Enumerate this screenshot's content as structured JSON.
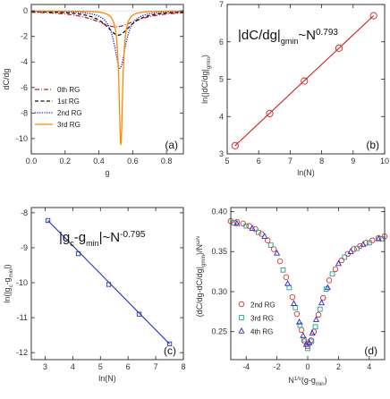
{
  "chart_data": [
    {
      "panel": "a",
      "type": "line",
      "xlabel": "g",
      "ylabel": "dC/dg",
      "xlim": [
        0.0,
        0.9
      ],
      "ylim": [
        -11.2,
        0.5
      ],
      "xticks": [
        "0.0",
        "0.2",
        "0.4",
        "0.6",
        "0.8"
      ],
      "yticks": [
        "0",
        "-2",
        "-4",
        "-6",
        "-8",
        "-10"
      ],
      "panel_label": "(a)",
      "legend_position": "lower-left",
      "series": [
        {
          "name": "0th RG",
          "color": "#cc2222",
          "style": "dashdot",
          "center": 0.5,
          "min": -1.25,
          "width": 0.15
        },
        {
          "name": "1st RG",
          "color": "#111111",
          "style": "dashed",
          "center": 0.515,
          "min": -1.9,
          "width": 0.09
        },
        {
          "name": "2nd RG",
          "color": "#1a1acc",
          "style": "dotted",
          "center": 0.525,
          "min": -4.5,
          "width": 0.04
        },
        {
          "name": "3rd RG",
          "color": "#ff8800",
          "style": "solid",
          "center": 0.53,
          "min": -10.5,
          "width": 0.013
        }
      ]
    },
    {
      "panel": "b",
      "type": "scatter",
      "xlabel": "ln(N)",
      "ylabel": "ln(|dC/dg|",
      "ylabel_sub": "gmin",
      "ylabel_end": ")",
      "xlim": [
        5,
        10
      ],
      "ylim": [
        3,
        7
      ],
      "xticks": [
        "5",
        "6",
        "7",
        "8",
        "9",
        "10"
      ],
      "yticks": [
        "3",
        "4",
        "5",
        "6",
        "7"
      ],
      "panel_label": "(b)",
      "annotation": {
        "main": "|dC/dg|",
        "sub": "gmin",
        "rel": "~N",
        "exp": "0.793"
      },
      "color": "#cc2222",
      "x": [
        5.25,
        6.35,
        7.45,
        8.55,
        9.65
      ],
      "y": [
        3.22,
        4.08,
        4.95,
        5.83,
        6.7
      ],
      "fit": {
        "x": [
          5.25,
          9.65
        ],
        "y": [
          3.22,
          6.7
        ]
      }
    },
    {
      "panel": "c",
      "type": "scatter",
      "xlabel": "ln(N)",
      "ylabel": "ln(|g",
      "ylabel_sub1": "c",
      "ylabel_mid": "-g",
      "ylabel_sub2": "min",
      "ylabel_end": "|)",
      "xlim": [
        2.5,
        8
      ],
      "ylim": [
        -12.2,
        -7.85
      ],
      "xticks": [
        "3",
        "4",
        "5",
        "6",
        "7",
        "8"
      ],
      "yticks": [
        "-8",
        "-9",
        "-10",
        "-11",
        "-12"
      ],
      "panel_label": "(c)",
      "annotation": {
        "main_a": "|g",
        "sub1": "c",
        "mid": "-g",
        "sub2": "min",
        "rel": "|~N",
        "exp": "-0.795"
      },
      "color": "#2233cc",
      "x": [
        3.1,
        4.2,
        5.3,
        6.4,
        7.5
      ],
      "y": [
        -8.22,
        -9.17,
        -10.05,
        -10.9,
        -11.75
      ],
      "fit": {
        "x": [
          3.1,
          7.5
        ],
        "y": [
          -8.22,
          -11.75
        ]
      }
    },
    {
      "panel": "d",
      "type": "scatter",
      "xlabel_pre": "N",
      "xlabel_exp": "1/ν",
      "xlabel_post": "(g-g",
      "xlabel_sub": "min",
      "xlabel_end": ")",
      "ylabel": "(dC/dg-dC/dg|",
      "ylabel_sub": "gmin",
      "ylabel_end": ")/N",
      "ylabel_exp": "ω/ν",
      "xlim": [
        -5,
        5
      ],
      "ylim": [
        0.215,
        0.405
      ],
      "xticks": [
        "-4",
        "-2",
        "0",
        "2",
        "4"
      ],
      "yticks": [
        "0.25",
        "0.30",
        "0.35",
        "0.40"
      ],
      "panel_label": "(d)",
      "legend_position": "lower-left",
      "series": [
        {
          "name": "2nd RG",
          "color": "#e03030",
          "marker": "circle",
          "x": [
            -5.0,
            -4.6,
            -4.2,
            -3.8,
            -3.4,
            -3.0,
            -2.6,
            -2.2,
            -1.8,
            -1.4,
            -1.0,
            -0.7,
            -0.4,
            -0.2,
            0.0,
            0.2,
            0.4,
            0.7,
            1.0,
            1.4,
            1.8,
            2.2,
            2.6,
            3.0,
            3.4,
            3.8,
            4.2,
            4.6,
            5.0
          ],
          "y": [
            0.388,
            0.387,
            0.385,
            0.382,
            0.378,
            0.372,
            0.364,
            0.353,
            0.338,
            0.318,
            0.293,
            0.272,
            0.252,
            0.238,
            0.232,
            0.239,
            0.25,
            0.271,
            0.292,
            0.314,
            0.328,
            0.339,
            0.347,
            0.353,
            0.357,
            0.361,
            0.364,
            0.367,
            0.369
          ]
        },
        {
          "name": "3rd RG",
          "color": "#20a090",
          "marker": "square",
          "x": [
            -4.8,
            -4.0,
            -3.2,
            -2.4,
            -1.6,
            -1.2,
            -0.8,
            -0.5,
            -0.25,
            0.0,
            0.25,
            0.5,
            0.8,
            1.2,
            1.6,
            2.4,
            3.2,
            4.0,
            4.8
          ],
          "y": [
            0.386,
            0.382,
            0.374,
            0.358,
            0.327,
            0.305,
            0.28,
            0.258,
            0.24,
            0.229,
            0.238,
            0.256,
            0.278,
            0.303,
            0.322,
            0.343,
            0.354,
            0.361,
            0.366
          ]
        },
        {
          "name": "4th RG",
          "color": "#2a2acc",
          "marker": "triangle",
          "x": [
            -4.6,
            -3.6,
            -2.8,
            -2.0,
            -1.3,
            -0.9,
            -0.55,
            -0.3,
            -0.1,
            0.1,
            0.3,
            0.55,
            0.9,
            1.3,
            2.0,
            2.8,
            3.6,
            4.6
          ],
          "y": [
            0.385,
            0.379,
            0.369,
            0.348,
            0.31,
            0.285,
            0.262,
            0.245,
            0.234,
            0.236,
            0.248,
            0.265,
            0.286,
            0.305,
            0.335,
            0.35,
            0.359,
            0.366
          ]
        }
      ]
    }
  ]
}
